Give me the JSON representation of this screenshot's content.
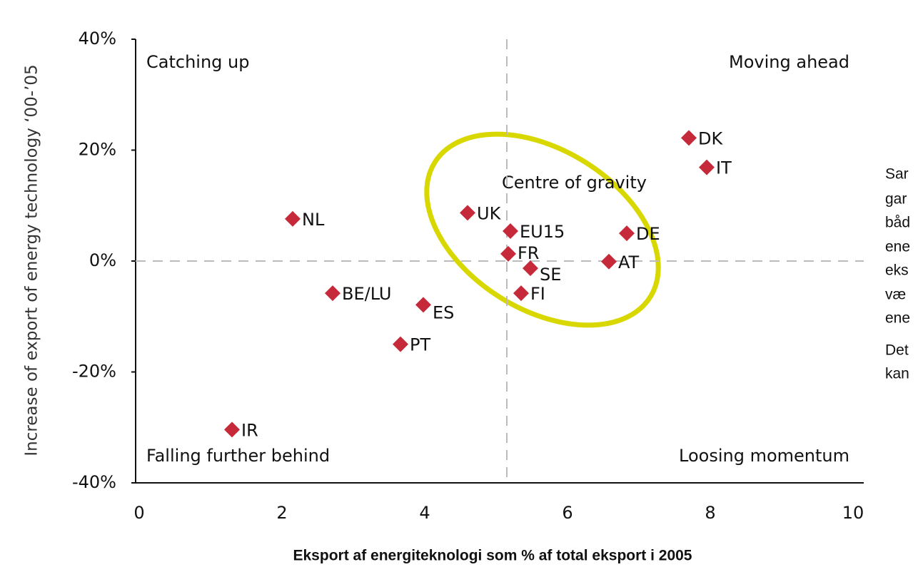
{
  "chart_data": {
    "type": "scatter",
    "x_label": "Eksport af energiteknologi som % af total eksport i 2005",
    "y_label": "Increase of export of energy technology ‘00-’05",
    "labels": [
      "DK",
      "IT",
      "NL",
      "UK",
      "EU15",
      "FR",
      "SE",
      "FI",
      "DE",
      "AT",
      "BE/LU",
      "ES",
      "PT",
      "IR"
    ],
    "x": [
      7.7,
      7.95,
      2.15,
      4.6,
      5.2,
      5.17,
      5.48,
      5.35,
      6.83,
      6.58,
      2.71,
      3.98,
      3.66,
      1.3
    ],
    "values": [
      22.2,
      16.9,
      7.6,
      8.7,
      5.4,
      1.3,
      -1.3,
      -5.8,
      5.0,
      -0.1,
      -5.8,
      -7.9,
      -15,
      -30.4
    ],
    "color": "#c62a3a",
    "xlim": [
      0,
      10
    ],
    "xticks": [
      0,
      2,
      4,
      6,
      8,
      10
    ],
    "ylim": [
      -40,
      40
    ],
    "yticks": [
      {
        "value": 40,
        "label": "40%"
      },
      {
        "value": 20,
        "label": "20%"
      },
      {
        "value": 0,
        "label": "0%"
      },
      {
        "value": -20,
        "label": "-20%"
      },
      {
        "value": -40,
        "label": "-40%"
      }
    ],
    "reference_lines": {
      "x": 5.15,
      "y": 0
    },
    "annotations": {
      "top_left": "Catching up",
      "top_right": "Moving ahead",
      "bottom_left": "Falling further behind",
      "bottom_right": "Loosing momentum",
      "ellipse": "Centre of gravity"
    }
  },
  "side_text": [
    "Sar",
    "gar",
    "båd",
    "ene",
    "eks",
    "væ",
    "ene",
    "Det",
    "kan"
  ]
}
